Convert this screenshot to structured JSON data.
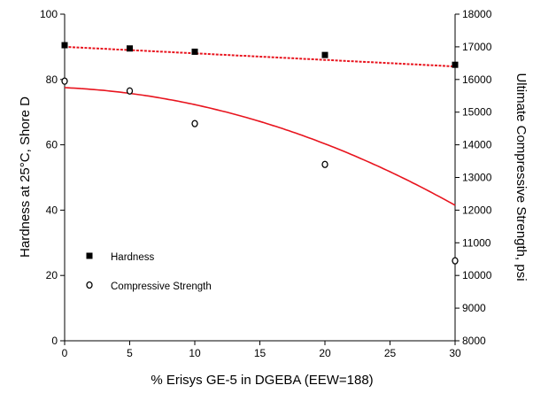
{
  "chart_data": {
    "type": "scatter",
    "xlabel": "% Erisys GE-5 in DGEBA (EEW=188)",
    "ylabel_left": "Hardness at 25°C, Shore D",
    "ylabel_right": "Ultimate Compressive Strength, psi",
    "xlim": [
      0,
      30
    ],
    "ylim_left": [
      0,
      100
    ],
    "ylim_right": [
      8000,
      18000
    ],
    "x_ticks": [
      "0",
      "5",
      "10",
      "15",
      "20",
      "25",
      "30"
    ],
    "y_left_ticks": [
      "0",
      "20",
      "40",
      "60",
      "80",
      "100"
    ],
    "y_right_ticks": [
      "8000",
      "9000",
      "10000",
      "11000",
      "12000",
      "13000",
      "14000",
      "15000",
      "16000",
      "17000",
      "18000"
    ],
    "grid": false,
    "legend_position": "bottom-left",
    "series": [
      {
        "name": "Hardness",
        "axis": "left",
        "marker": "filled-square",
        "color": "#000000",
        "points": [
          [
            0,
            90.5
          ],
          [
            5,
            89.5
          ],
          [
            10,
            88.5
          ],
          [
            20,
            87.5
          ],
          [
            30,
            84.5
          ]
        ],
        "fit": {
          "style": "dotted",
          "color": "#e8141e",
          "start": 90.0,
          "end": 84.0
        }
      },
      {
        "name": "Compressive Strength",
        "axis": "right",
        "marker": "open-circle",
        "color": "#000000",
        "points": [
          [
            0,
            15950
          ],
          [
            5,
            15650
          ],
          [
            10,
            14650
          ],
          [
            20,
            13400
          ],
          [
            30,
            10450
          ]
        ],
        "fit": {
          "style": "solid",
          "color": "#e8141e",
          "coefficients": [
            15750,
            -18,
            -3.4
          ]
        }
      }
    ]
  }
}
